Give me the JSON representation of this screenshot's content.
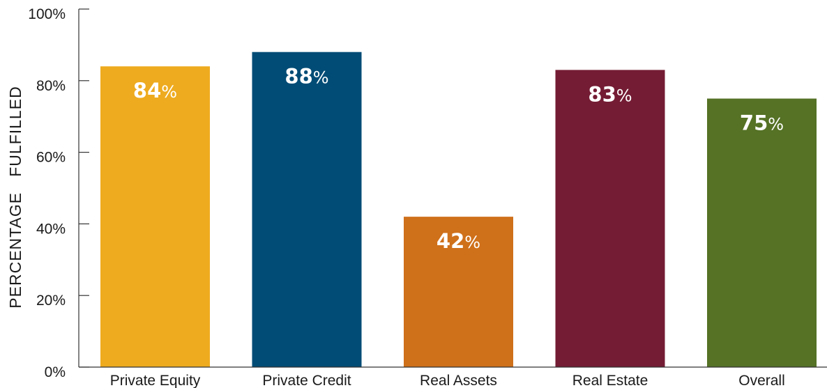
{
  "chart_data": {
    "type": "bar",
    "title": "",
    "xlabel": "",
    "ylabel": "PERCENTAGE   FULFILLED",
    "ylim": [
      0,
      100
    ],
    "yticks": [
      0,
      20,
      40,
      60,
      80,
      100
    ],
    "ytick_labels": [
      "0%",
      "20%",
      "40%",
      "60%",
      "80%",
      "100%"
    ],
    "categories": [
      "Private Equity",
      "Private Credit",
      "Real Assets",
      "Real Estate",
      "Overall"
    ],
    "values": [
      84,
      88,
      42,
      83,
      75
    ],
    "value_labels": [
      "84",
      "88",
      "42",
      "83",
      "75"
    ],
    "value_suffix": "%",
    "colors": [
      "#EEAB1F",
      "#004C76",
      "#CF701A",
      "#741C34",
      "#557225"
    ],
    "grid": false,
    "legend": "none"
  }
}
